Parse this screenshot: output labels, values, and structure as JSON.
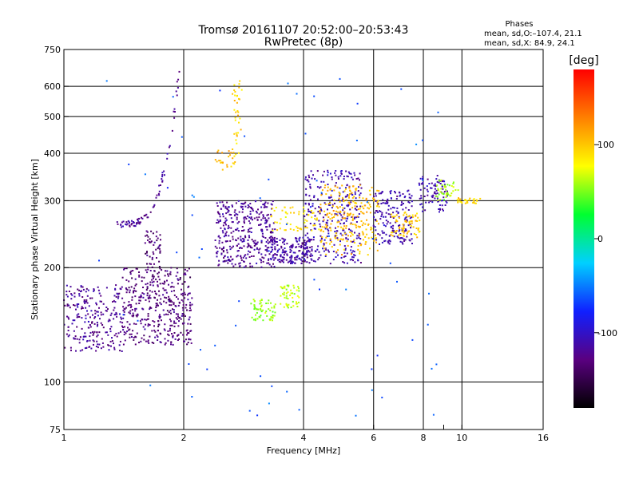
{
  "title": "Tromsø 20161107 20:52:00–20:53:43",
  "subtitle": "RwPretec (8p)",
  "stats": {
    "heading": "Phases",
    "line_o": "mean, sd,O:–107.4, 21.1",
    "line_x": "mean, sd,X:  84.9, 24.1"
  },
  "chart_data": {
    "type": "scatter",
    "xlabel": "Frequency [MHz]",
    "ylabel": "Stationary phase Virtual Height [km]",
    "xscale": "log",
    "yscale": "log",
    "xlim": [
      1,
      16
    ],
    "ylim": [
      75,
      750
    ],
    "x_ticks": [
      1,
      2,
      4,
      6,
      8,
      10,
      16
    ],
    "x_minor": [
      9
    ],
    "y_ticks": [
      75,
      100,
      200,
      300,
      400,
      500,
      600,
      750
    ],
    "x_grid": [
      2,
      4,
      6,
      8,
      10
    ],
    "y_grid": [
      100,
      200,
      300,
      400,
      500,
      600
    ],
    "grid": true,
    "colorbar": {
      "label": "[deg]",
      "range": [
        -180,
        180
      ],
      "ticks": [
        -100,
        0,
        100
      ],
      "colormap": "rainbow",
      "stops": [
        "#000000",
        "#5a0080",
        "#1020ff",
        "#00d0ff",
        "#00ff30",
        "#ffff00",
        "#ff8000",
        "#ff0000"
      ]
    },
    "series": [
      {
        "x_range": [
          1.35,
          1.9
        ],
        "h_range": [
          255,
          290
        ],
        "phase": -120,
        "count": 80,
        "shape": "curve_up",
        "curve_to": [
          1.95,
          650
        ]
      },
      {
        "x_range": [
          1.0,
          1.4
        ],
        "h_range": [
          120,
          180
        ],
        "phase": -120,
        "count": 240,
        "shape": "blob"
      },
      {
        "x_range": [
          1.4,
          2.1
        ],
        "h_range": [
          125,
          200
        ],
        "phase": -130,
        "count": 420,
        "shape": "blob"
      },
      {
        "x_range": [
          1.6,
          1.75
        ],
        "h_range": [
          200,
          250
        ],
        "phase": -135,
        "count": 50,
        "shape": "blob"
      },
      {
        "x_range": [
          2.4,
          3.4
        ],
        "h_range": [
          200,
          300
        ],
        "phase": -120,
        "count": 380,
        "shape": "blob"
      },
      {
        "x_range": [
          3.3,
          4.2
        ],
        "h_range": [
          205,
          240
        ],
        "phase": -115,
        "count": 180,
        "shape": "blob"
      },
      {
        "x_range": [
          4.0,
          5.6
        ],
        "h_range": [
          205,
          360
        ],
        "phase": -110,
        "count": 300,
        "shape": "blob"
      },
      {
        "x_range": [
          4.4,
          6.2
        ],
        "h_range": [
          215,
          330
        ],
        "phase": 105,
        "count": 240,
        "shape": "blob"
      },
      {
        "x_range": [
          6.0,
          7.5
        ],
        "h_range": [
          230,
          320
        ],
        "phase": -110,
        "count": 170,
        "shape": "blob"
      },
      {
        "x_range": [
          6.6,
          7.9
        ],
        "h_range": [
          240,
          280
        ],
        "phase": 100,
        "count": 70,
        "shape": "blob"
      },
      {
        "x_range": [
          7.8,
          9.2
        ],
        "h_range": [
          280,
          350
        ],
        "phase": -110,
        "count": 90,
        "shape": "blob"
      },
      {
        "x_range": [
          8.6,
          9.8
        ],
        "h_range": [
          300,
          340
        ],
        "phase": 60,
        "count": 40,
        "shape": "blob"
      },
      {
        "x_range": [
          9.7,
          11.2
        ],
        "h_range": [
          295,
          305
        ],
        "phase": 95,
        "count": 30,
        "shape": "blob"
      },
      {
        "x_range": [
          2.95,
          3.4
        ],
        "h_range": [
          145,
          165
        ],
        "phase": 55,
        "count": 60,
        "shape": "blob"
      },
      {
        "x_range": [
          3.5,
          3.9
        ],
        "h_range": [
          155,
          180
        ],
        "phase": 65,
        "count": 50,
        "shape": "blob"
      },
      {
        "x_range": [
          3.3,
          4.4
        ],
        "h_range": [
          250,
          290
        ],
        "phase": 90,
        "count": 60,
        "shape": "blob"
      },
      {
        "x_range": [
          2.4,
          2.7
        ],
        "h_range": [
          360,
          410
        ],
        "phase": 105,
        "count": 25,
        "shape": "blob"
      },
      {
        "x_range": [
          2.65,
          2.8
        ],
        "h_range": [
          380,
          620
        ],
        "phase": 95,
        "count": 35,
        "shape": "blob"
      },
      {
        "x_range": [
          1.2,
          9.0
        ],
        "h_range": [
          80,
          650
        ],
        "phase": -60,
        "count": 70,
        "shape": "scatter"
      }
    ]
  }
}
